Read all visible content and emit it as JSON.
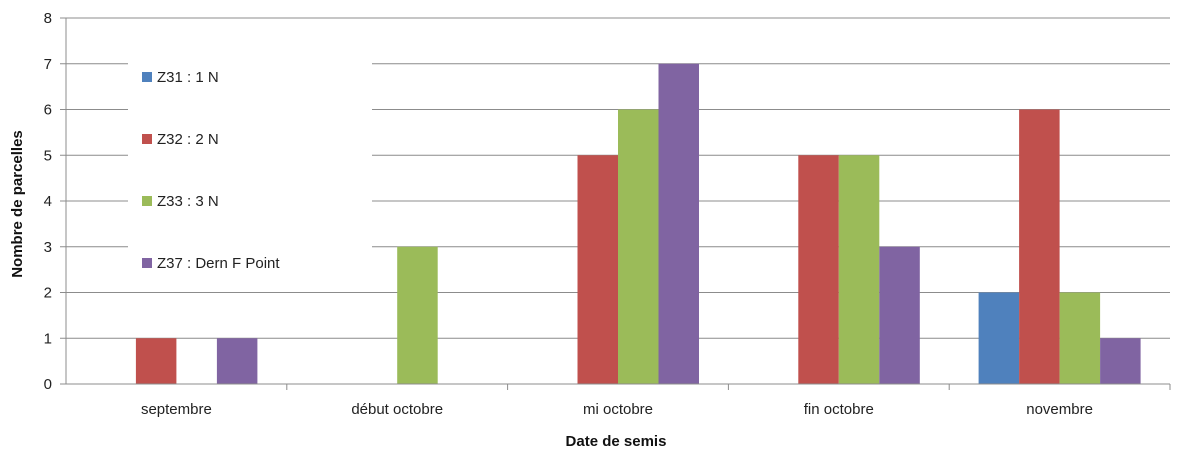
{
  "chart_data": {
    "type": "bar",
    "title": "",
    "xlabel": "Date de semis",
    "ylabel": "Nombre de parcelles",
    "ylim": [
      0,
      8
    ],
    "yticks": [
      0,
      1,
      2,
      3,
      4,
      5,
      6,
      7,
      8
    ],
    "categories": [
      "septembre",
      "début octobre",
      "mi octobre",
      "fin octobre",
      "novembre"
    ],
    "series": [
      {
        "name": "Z31 : 1 N",
        "color": "#4f81bd",
        "values": [
          0,
          0,
          0,
          0,
          2
        ]
      },
      {
        "name": "Z32 : 2 N",
        "color": "#c0504d",
        "values": [
          1,
          0,
          5,
          5,
          6
        ]
      },
      {
        "name": "Z33 : 3 N",
        "color": "#9bbb59",
        "values": [
          0,
          3,
          6,
          5,
          2
        ]
      },
      {
        "name": "Z37 : Dern F Point",
        "color": "#8064a2",
        "values": [
          1,
          0,
          7,
          3,
          1
        ]
      }
    ],
    "grid": true,
    "legend_position": "top-left-inside"
  }
}
